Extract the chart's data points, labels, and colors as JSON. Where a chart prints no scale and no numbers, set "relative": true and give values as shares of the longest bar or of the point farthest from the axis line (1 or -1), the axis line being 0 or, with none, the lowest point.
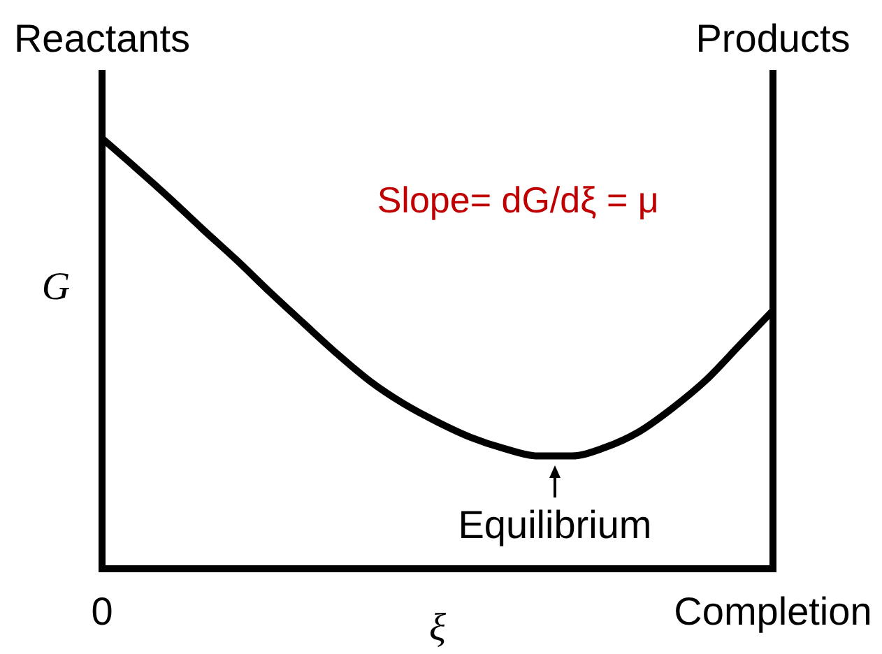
{
  "chart_data": {
    "type": "line",
    "xlabel": "ξ",
    "ylabel": "G",
    "relative": true,
    "tick_labels": "x",
    "categories": [
      "0",
      null,
      null,
      null,
      null,
      null,
      null,
      null,
      null,
      null,
      null,
      null,
      null,
      null,
      null,
      null,
      null,
      null,
      null,
      null,
      "Completion"
    ],
    "series": [
      {
        "color": "#000000",
        "values": [
          1,
          0.932,
          0.862,
          0.789,
          0.718,
          0.643,
          0.571,
          0.5,
          0.435,
          0.383,
          0.341,
          0.305,
          0.279,
          0.262,
          0.262,
          0.282,
          0.318,
          0.373,
          0.438,
          0.519,
          0.6
        ]
      }
    ],
    "annotations": [
      "Reactants",
      "Products",
      "Slope= dG/dξ = μ",
      "Equilibrium"
    ]
  }
}
